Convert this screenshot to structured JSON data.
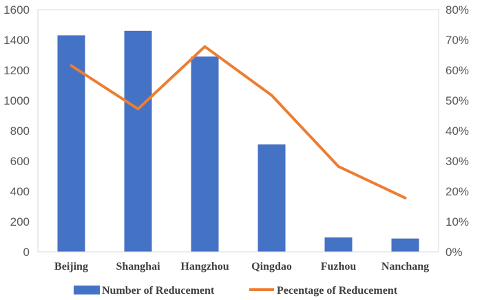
{
  "chart_data": {
    "type": "bar",
    "categories": [
      "Beijing",
      "Shanghai",
      "Hangzhou",
      "Qingdao",
      "Fuzhou",
      "Nanchang"
    ],
    "series": [
      {
        "name": "Number of Reducement",
        "type": "bar",
        "axis": "left",
        "color": "#4472C4",
        "values": [
          1430,
          1460,
          1290,
          710,
          95,
          88
        ]
      },
      {
        "name": "Pecentage of Reducement",
        "type": "line",
        "axis": "right",
        "color": "#ED7D31",
        "values": [
          0.615,
          0.472,
          0.678,
          0.517,
          0.282,
          0.178
        ]
      }
    ],
    "ylim": [
      0,
      1600
    ],
    "y_ticks": [
      "0",
      "200",
      "400",
      "600",
      "800",
      "1000",
      "1200",
      "1400",
      "1600"
    ],
    "y2lim": [
      0,
      0.8
    ],
    "y2_ticks": [
      "0%",
      "10%",
      "20%",
      "30%",
      "40%",
      "50%",
      "60%",
      "70%",
      "80%"
    ],
    "grid": false,
    "legend": "bottom"
  }
}
